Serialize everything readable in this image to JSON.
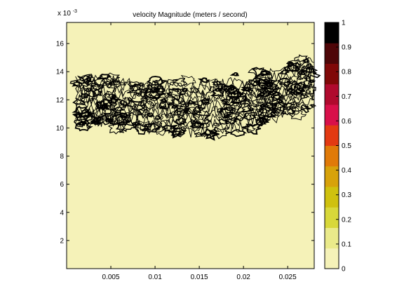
{
  "chart_data": {
    "type": "contour",
    "title": "velocity Magnitude  (meters / second)",
    "xlabel": "",
    "ylabel": "",
    "y_exponent_label": "x 10",
    "y_exponent_power": "-3",
    "xlim": [
      0.0,
      0.028
    ],
    "ylim": [
      0.0,
      17.5
    ],
    "x_ticks": [
      {
        "value": 0.005,
        "label": "0.005"
      },
      {
        "value": 0.01,
        "label": "0.01"
      },
      {
        "value": 0.015,
        "label": "0.015"
      },
      {
        "value": 0.02,
        "label": "0.02"
      },
      {
        "value": 0.025,
        "label": "0.025"
      }
    ],
    "y_ticks": [
      {
        "value": 2,
        "label": "2"
      },
      {
        "value": 4,
        "label": "4"
      },
      {
        "value": 6,
        "label": "6"
      },
      {
        "value": 8,
        "label": "8"
      },
      {
        "value": 10,
        "label": "10"
      },
      {
        "value": 12,
        "label": "12"
      },
      {
        "value": 14,
        "label": "14"
      },
      {
        "value": 16,
        "label": "16"
      }
    ],
    "background_color": "#f5f2b8",
    "contour_line_color": "#000000",
    "contour_band": {
      "x": [
        0.001,
        0.004,
        0.007,
        0.01,
        0.013,
        0.016,
        0.019,
        0.022,
        0.025,
        0.028
      ],
      "upper": [
        13.8,
        13.9,
        13.8,
        13.6,
        13.4,
        13.5,
        13.8,
        14.2,
        14.8,
        15.2
      ],
      "lower": [
        10.0,
        10.1,
        9.8,
        9.6,
        9.3,
        9.4,
        9.6,
        10.0,
        10.7,
        11.2
      ]
    },
    "colorbar": {
      "min": 0,
      "max": 1,
      "tick_labels": [
        "0",
        "0.1",
        "0.2",
        "0.3",
        "0.4",
        "0.5",
        "0.6",
        "0.7",
        "0.8",
        "0.9",
        "1"
      ],
      "colors": [
        "#f5f2b8",
        "#eaea8a",
        "#d8d83a",
        "#cfc10e",
        "#d7a20a",
        "#e07a08",
        "#e33a12",
        "#d8104a",
        "#b00a2e",
        "#800808",
        "#4e0608",
        "#000000"
      ]
    }
  }
}
